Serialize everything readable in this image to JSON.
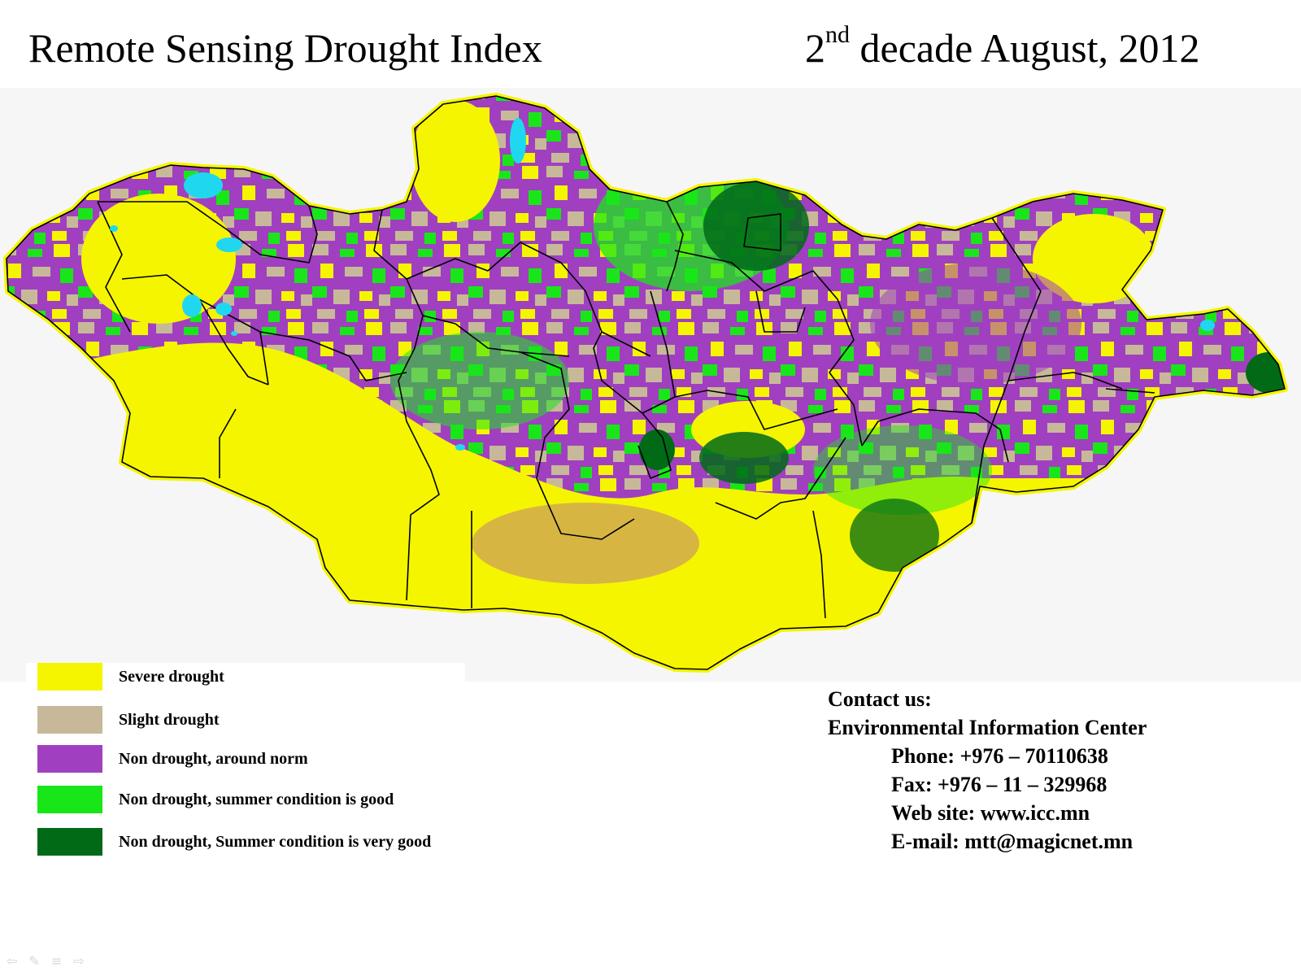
{
  "title": {
    "main": "Remote Sensing Drought Index",
    "period_ordinal": "2",
    "period_suffix": "nd",
    "period_rest": "decade August, 2012"
  },
  "legend": [
    {
      "label": "Severe drought",
      "color": "#f5f500"
    },
    {
      "label": "Slight drought",
      "color": "#c8b89a"
    },
    {
      "label": "Non drought, around norm",
      "color": "#a040c0"
    },
    {
      "label": "Non drought, summer condition is good",
      "color": "#19e619"
    },
    {
      "label": "Non drought, Summer condition is very good",
      "color": "#006a17"
    }
  ],
  "map": {
    "water_color": "#1fd8f0",
    "border_color": "#000000",
    "background_color": "#f6f6f6"
  },
  "contact": {
    "heading": "Contact us:",
    "organization": "Environmental Information Center",
    "phone": "Phone: +976 – 70110638",
    "fax": "Fax: +976 – 11 – 329968",
    "website": "Web site: www.icc.mn",
    "email": "E-mail: mtt@magicnet.mn"
  },
  "nav_controls": [
    {
      "icon": "previous-arrow-icon",
      "glyph": "⇦"
    },
    {
      "icon": "pen-icon",
      "glyph": "✎"
    },
    {
      "icon": "menu-icon",
      "glyph": "≡"
    },
    {
      "icon": "next-arrow-icon",
      "glyph": "⇨"
    }
  ]
}
